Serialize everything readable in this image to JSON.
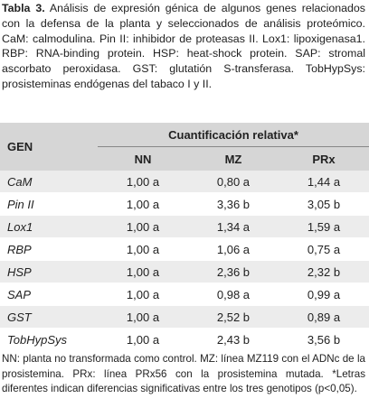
{
  "caption": {
    "label": "Tabla 3.",
    "text": "Análisis de expresión génica de algunos genes relacionados con la defensa de la planta y seleccionados de análisis proteómico. CaM: calmodulina. Pin II: inhibidor de proteasas II. Lox1: lipoxigenasa1. RBP: RNA-binding protein. HSP: heat-shock protein. SAP: stromal ascorbato peroxidasa. GST: glutatión S-transferasa. TobHypSys: prosisteminas endógenas del tabaco I y II."
  },
  "table": {
    "gene_header": "GEN",
    "group_header": "Cuantificación relativa*",
    "columns": [
      "NN",
      "MZ",
      "PRx"
    ],
    "rows": [
      [
        "CaM",
        "1,00 a",
        "0,80 a",
        "1,44 a"
      ],
      [
        "Pin II",
        "1,00 a",
        "3,36 b",
        "3,05 b"
      ],
      [
        "Lox1",
        "1,00 a",
        "1,34 a",
        "1,59 a"
      ],
      [
        "RBP",
        "1,00 a",
        "1,06 a",
        "0,75 a"
      ],
      [
        "HSP",
        "1,00 a",
        "2,36 b",
        "2,32 b"
      ],
      [
        "SAP",
        "1,00 a",
        "0,98 a",
        "0,99 a"
      ],
      [
        "GST",
        "1,00 a",
        "2,52 b",
        "0,89 a"
      ],
      [
        "TobHypSys",
        "1,00 a",
        "2,43 b",
        "3,56 b"
      ]
    ]
  },
  "footnote": "NN: planta no transformada como control. MZ: línea MZ119 con el ADNc de la prosistemina. PRx: línea PRx56 con la prosistemina mutada. *Letras diferentes indican diferencias significativas entre los tres genotipos (p<0,05)."
}
